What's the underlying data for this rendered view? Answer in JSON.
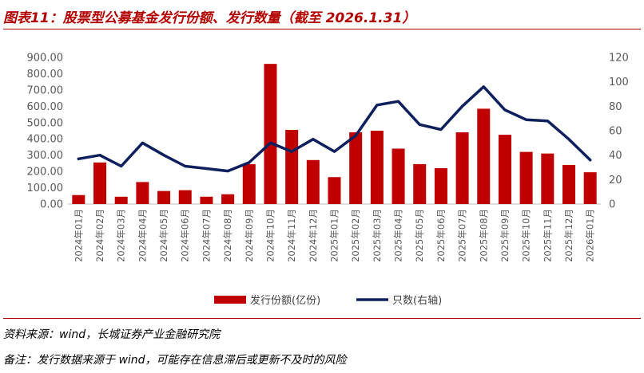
{
  "title": "图表11：股票型公募基金发行份额、发行数量（截至 2026.1.31）",
  "source": "资料来源：wind，长城证券产业金融研究院",
  "note": "备注：发行数据来源于 wind，可能存在信息滞后或更新不及时的风险",
  "colors": {
    "bar": "#c00000",
    "line": "#0d1f5c",
    "accent": "#b30000"
  },
  "chart_data": {
    "type": "bar",
    "categories": [
      "2024年01月",
      "2024年02月",
      "2024年03月",
      "2024年04月",
      "2024年05月",
      "2024年06月",
      "2024年07月",
      "2024年08月",
      "2024年09月",
      "2024年10月",
      "2024年11月",
      "2024年12月",
      "2025年01月",
      "2025年02月",
      "2025年03月",
      "2025年04月",
      "2025年05月",
      "2025年06月",
      "2025年07月",
      "2025年08月",
      "2025年09月",
      "2025年10月",
      "2025年11月",
      "2025年12月",
      "2026年01月"
    ],
    "series": [
      {
        "name": "发行份额(亿份)",
        "type": "bar",
        "axis": "left",
        "values": [
          55,
          255,
          45,
          135,
          80,
          85,
          45,
          60,
          245,
          860,
          455,
          270,
          165,
          440,
          450,
          340,
          245,
          220,
          440,
          585,
          425,
          320,
          310,
          240,
          195
        ]
      },
      {
        "name": "只数(右轴)",
        "type": "line",
        "axis": "right",
        "values": [
          37,
          40,
          31,
          50,
          40,
          31,
          29,
          27,
          34,
          50,
          43,
          53,
          43,
          56,
          81,
          84,
          65,
          61,
          80,
          96,
          77,
          69,
          68,
          53,
          36
        ]
      }
    ],
    "y_left": {
      "min": 0,
      "max": 900,
      "ticks": [
        "0.00",
        "100.00",
        "200.00",
        "300.00",
        "400.00",
        "500.00",
        "600.00",
        "700.00",
        "800.00",
        "900.00"
      ]
    },
    "y_right": {
      "min": 0,
      "max": 120,
      "ticks": [
        "0",
        "20",
        "40",
        "60",
        "80",
        "100",
        "120"
      ]
    },
    "legend_position": "bottom",
    "grid": false
  }
}
